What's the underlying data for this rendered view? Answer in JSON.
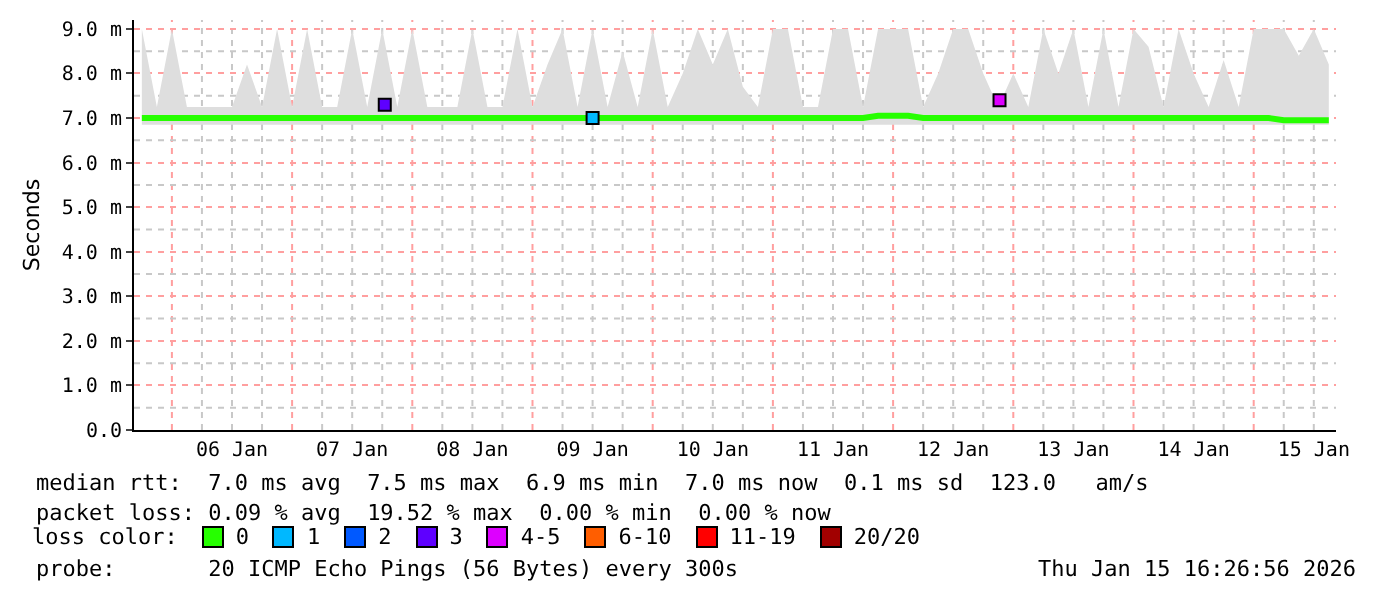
{
  "chart_data": {
    "type": "line",
    "ylabel": "Seconds",
    "legend_title": "loss color:",
    "legend": "bottom",
    "grid": true,
    "xlim": [
      "2026-01-05T16:26",
      "2026-01-15T16:26"
    ],
    "xticks": [
      {
        "value": "2026-01-06T12:00",
        "label": "06 Jan"
      },
      {
        "value": "2026-01-07T12:00",
        "label": "07 Jan"
      },
      {
        "value": "2026-01-08T12:00",
        "label": "08 Jan"
      },
      {
        "value": "2026-01-09T12:00",
        "label": "09 Jan"
      },
      {
        "value": "2026-01-10T12:00",
        "label": "10 Jan"
      },
      {
        "value": "2026-01-11T12:00",
        "label": "11 Jan"
      },
      {
        "value": "2026-01-12T12:00",
        "label": "12 Jan"
      },
      {
        "value": "2026-01-13T12:00",
        "label": "13 Jan"
      },
      {
        "value": "2026-01-14T12:00",
        "label": "14 Jan"
      },
      {
        "value": "2026-01-15T12:00",
        "label": "15 Jan"
      }
    ],
    "ylim": [
      0,
      9.2
    ],
    "yticks": [
      {
        "value": 0,
        "label": "0.0"
      },
      {
        "value": 1,
        "label": "1.0 m"
      },
      {
        "value": 2,
        "label": "2.0 m"
      },
      {
        "value": 3,
        "label": "3.0 m"
      },
      {
        "value": 4,
        "label": "4.0 m"
      },
      {
        "value": 5,
        "label": "5.0 m"
      },
      {
        "value": 6,
        "label": "6.0 m"
      },
      {
        "value": 7,
        "label": "7.0 m"
      },
      {
        "value": 8,
        "label": "8.0 m"
      },
      {
        "value": 9,
        "label": "9.0 m"
      }
    ],
    "x": [
      "2026-01-05T18:00",
      "2026-01-05T21:00",
      "2026-01-06T00:00",
      "2026-01-06T03:00",
      "2026-01-06T06:00",
      "2026-01-06T09:00",
      "2026-01-06T12:00",
      "2026-01-06T15:00",
      "2026-01-06T18:00",
      "2026-01-06T21:00",
      "2026-01-07T00:00",
      "2026-01-07T03:00",
      "2026-01-07T06:00",
      "2026-01-07T09:00",
      "2026-01-07T12:00",
      "2026-01-07T15:00",
      "2026-01-07T18:00",
      "2026-01-07T21:00",
      "2026-01-08T00:00",
      "2026-01-08T03:00",
      "2026-01-08T06:00",
      "2026-01-08T09:00",
      "2026-01-08T12:00",
      "2026-01-08T15:00",
      "2026-01-08T18:00",
      "2026-01-08T21:00",
      "2026-01-09T00:00",
      "2026-01-09T03:00",
      "2026-01-09T06:00",
      "2026-01-09T09:00",
      "2026-01-09T12:00",
      "2026-01-09T15:00",
      "2026-01-09T18:00",
      "2026-01-09T21:00",
      "2026-01-10T00:00",
      "2026-01-10T03:00",
      "2026-01-10T06:00",
      "2026-01-10T09:00",
      "2026-01-10T12:00",
      "2026-01-10T15:00",
      "2026-01-10T18:00",
      "2026-01-10T21:00",
      "2026-01-11T00:00",
      "2026-01-11T03:00",
      "2026-01-11T06:00",
      "2026-01-11T09:00",
      "2026-01-11T12:00",
      "2026-01-11T15:00",
      "2026-01-11T18:00",
      "2026-01-11T21:00",
      "2026-01-12T00:00",
      "2026-01-12T03:00",
      "2026-01-12T06:00",
      "2026-01-12T09:00",
      "2026-01-12T12:00",
      "2026-01-12T15:00",
      "2026-01-12T18:00",
      "2026-01-12T21:00",
      "2026-01-13T00:00",
      "2026-01-13T03:00",
      "2026-01-13T06:00",
      "2026-01-13T09:00",
      "2026-01-13T12:00",
      "2026-01-13T15:00",
      "2026-01-13T18:00",
      "2026-01-13T21:00",
      "2026-01-14T00:00",
      "2026-01-14T03:00",
      "2026-01-14T06:00",
      "2026-01-14T09:00",
      "2026-01-14T12:00",
      "2026-01-14T15:00",
      "2026-01-14T18:00",
      "2026-01-14T21:00",
      "2026-01-15T00:00",
      "2026-01-15T03:00",
      "2026-01-15T06:00",
      "2026-01-15T09:00",
      "2026-01-15T12:00",
      "2026-01-15T15:00"
    ],
    "series": [
      {
        "name": "0",
        "color": "#26ff00",
        "values": [
          7.0,
          7.0,
          7.0,
          7.0,
          7.0,
          7.0,
          7.0,
          7.0,
          7.0,
          7.0,
          7.0,
          7.0,
          7.0,
          7.0,
          7.0,
          7.0,
          7.0,
          7.0,
          7.0,
          7.0,
          7.0,
          7.0,
          7.0,
          7.0,
          7.0,
          7.0,
          7.0,
          7.0,
          7.0,
          7.0,
          7.0,
          7.0,
          7.0,
          7.0,
          7.0,
          7.0,
          7.0,
          7.0,
          7.0,
          7.0,
          7.0,
          7.0,
          7.0,
          7.0,
          7.0,
          7.0,
          7.0,
          7.0,
          7.0,
          7.05,
          7.05,
          7.05,
          7.0,
          7.0,
          7.0,
          7.0,
          7.0,
          7.0,
          7.0,
          7.0,
          7.0,
          7.0,
          7.0,
          7.0,
          7.0,
          7.0,
          7.0,
          7.0,
          7.0,
          7.0,
          7.0,
          7.0,
          7.0,
          7.0,
          7.0,
          7.0,
          6.95,
          6.95,
          6.95,
          6.95
        ],
        "lower": [
          6.85,
          6.85,
          6.85,
          6.85,
          6.85,
          6.85,
          6.85,
          6.85,
          6.85,
          6.85,
          6.85,
          6.85,
          6.85,
          6.85,
          6.85,
          6.85,
          6.85,
          6.85,
          6.85,
          6.85,
          6.85,
          6.85,
          6.85,
          6.85,
          6.85,
          6.85,
          6.85,
          6.85,
          6.85,
          6.85,
          6.85,
          6.85,
          6.85,
          6.85,
          6.85,
          6.85,
          6.85,
          6.85,
          6.85,
          6.85,
          6.85,
          6.85,
          6.85,
          6.85,
          6.85,
          6.85,
          6.85,
          6.85,
          6.85,
          6.85,
          6.85,
          6.85,
          6.85,
          6.85,
          6.85,
          6.85,
          6.85,
          6.85,
          6.85,
          6.85,
          6.85,
          6.85,
          6.85,
          6.85,
          6.85,
          6.85,
          6.85,
          6.85,
          6.85,
          6.85,
          6.85,
          6.85,
          6.85,
          6.85,
          6.85,
          6.85,
          6.85,
          6.85,
          6.85,
          6.85
        ],
        "upper": [
          9.0,
          7.25,
          9.0,
          7.25,
          7.25,
          7.25,
          7.25,
          8.2,
          7.25,
          9.0,
          7.25,
          9.0,
          7.25,
          7.25,
          9.0,
          7.25,
          9.0,
          7.25,
          9.0,
          7.25,
          7.25,
          7.25,
          9.0,
          7.25,
          7.25,
          9.0,
          7.25,
          8.2,
          9.0,
          7.25,
          9.0,
          7.25,
          8.5,
          7.25,
          9.0,
          7.25,
          8.0,
          9.0,
          8.2,
          9.0,
          7.7,
          7.25,
          9.0,
          9.0,
          7.25,
          7.25,
          9.0,
          9.0,
          7.25,
          9.0,
          9.0,
          9.0,
          7.25,
          8.0,
          9.0,
          9.0,
          8.0,
          7.25,
          8.0,
          7.25,
          9.0,
          8.0,
          9.0,
          7.25,
          9.0,
          7.25,
          9.0,
          8.6,
          7.25,
          9.0,
          8.0,
          7.25,
          8.3,
          7.25,
          9.0,
          9.0,
          9.0,
          8.4,
          9.0,
          8.2
        ]
      },
      {
        "name": "1",
        "color": "#00b8ff",
        "type": "scatter",
        "marker": "square",
        "x": [
          "2026-01-09T12:00"
        ],
        "values": [
          7.0
        ]
      },
      {
        "name": "2",
        "color": "#0059ff",
        "type": "scatter",
        "marker": "square",
        "values": [
          null,
          null,
          null,
          null,
          null,
          null,
          null,
          null,
          null,
          null,
          null,
          null,
          null,
          null,
          null,
          null,
          null,
          null,
          null,
          null,
          null,
          null,
          null,
          null,
          null,
          null,
          null,
          null,
          null,
          null,
          null,
          null,
          null,
          null,
          null,
          null,
          null,
          null,
          null,
          null,
          null,
          null,
          null,
          null,
          null,
          null,
          null,
          null,
          null,
          null,
          null,
          null,
          null,
          null,
          null,
          null,
          null,
          null,
          null,
          null,
          null,
          null,
          null,
          null,
          null,
          null,
          null,
          null,
          null,
          null,
          null,
          null,
          null,
          null,
          null,
          null,
          null,
          null,
          null,
          null
        ]
      },
      {
        "name": "3",
        "color": "#5e00ff",
        "type": "scatter",
        "marker": "square",
        "x": [
          "2026-01-07T18:30"
        ],
        "values": [
          7.3
        ]
      },
      {
        "name": "4-5",
        "color": "#dd00ff",
        "type": "scatter",
        "marker": "square",
        "x": [
          "2026-01-12T21:15"
        ],
        "values": [
          7.4
        ]
      },
      {
        "name": "6-10",
        "color": "#ff5e00",
        "type": "scatter",
        "marker": "square",
        "values": [
          null,
          null,
          null,
          null,
          null,
          null,
          null,
          null,
          null,
          null,
          null,
          null,
          null,
          null,
          null,
          null,
          null,
          null,
          null,
          null,
          null,
          null,
          null,
          null,
          null,
          null,
          null,
          null,
          null,
          null,
          null,
          null,
          null,
          null,
          null,
          null,
          null,
          null,
          null,
          null,
          null,
          null,
          null,
          null,
          null,
          null,
          null,
          null,
          null,
          null,
          null,
          null,
          null,
          null,
          null,
          null,
          null,
          null,
          null,
          null,
          null,
          null,
          null,
          null,
          null,
          null,
          null,
          null,
          null,
          null,
          null,
          null,
          null,
          null,
          null,
          null,
          null,
          null,
          null,
          null
        ]
      },
      {
        "name": "11-19",
        "color": "#ff0000",
        "type": "scatter",
        "marker": "square",
        "values": [
          null,
          null,
          null,
          null,
          null,
          null,
          null,
          null,
          null,
          null,
          null,
          null,
          null,
          null,
          null,
          null,
          null,
          null,
          null,
          null,
          null,
          null,
          null,
          null,
          null,
          null,
          null,
          null,
          null,
          null,
          null,
          null,
          null,
          null,
          null,
          null,
          null,
          null,
          null,
          null,
          null,
          null,
          null,
          null,
          null,
          null,
          null,
          null,
          null,
          null,
          null,
          null,
          null,
          null,
          null,
          null,
          null,
          null,
          null,
          null,
          null,
          null,
          null,
          null,
          null,
          null,
          null,
          null,
          null,
          null,
          null,
          null,
          null,
          null,
          null,
          null,
          null,
          null,
          null,
          null
        ]
      },
      {
        "name": "20/20",
        "color": "#a10000",
        "type": "scatter",
        "marker": "square",
        "values": [
          null,
          null,
          null,
          null,
          null,
          null,
          null,
          null,
          null,
          null,
          null,
          null,
          null,
          null,
          null,
          null,
          null,
          null,
          null,
          null,
          null,
          null,
          null,
          null,
          null,
          null,
          null,
          null,
          null,
          null,
          null,
          null,
          null,
          null,
          null,
          null,
          null,
          null,
          null,
          null,
          null,
          null,
          null,
          null,
          null,
          null,
          null,
          null,
          null,
          null,
          null,
          null,
          null,
          null,
          null,
          null,
          null,
          null,
          null,
          null,
          null,
          null,
          null,
          null,
          null,
          null,
          null,
          null,
          null,
          null,
          null,
          null,
          null,
          null,
          null,
          null,
          null,
          null,
          null,
          null
        ]
      }
    ],
    "annotations": [
      "median rtt:  7.0 ms avg  7.5 ms max  6.9 ms min  7.0 ms now  0.1 ms sd  123.0   am/s",
      "packet loss: 0.09 % avg  19.52 % max  0.00 % min  0.00 % now",
      "probe:       20 ICMP Echo Pings (56 Bytes) every 300s",
      "Thu Jan 15 16:26:56 2026"
    ]
  }
}
